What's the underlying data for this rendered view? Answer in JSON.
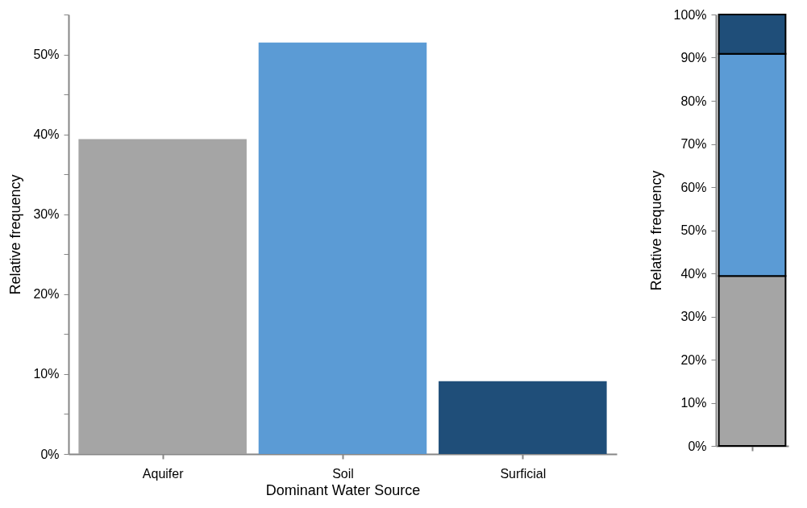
{
  "chart_data": [
    {
      "type": "bar",
      "xlabel": "Dominant Water Source",
      "ylabel": "Relative frequency",
      "categories": [
        "Aquifer",
        "Soil",
        "Surficial"
      ],
      "values": [
        39.4,
        51.5,
        9.1
      ],
      "colors": [
        "#a5a5a5",
        "#5b9bd5",
        "#1f4e79"
      ],
      "ylim": [
        0,
        55
      ],
      "yticks": [
        {
          "value": 0,
          "label": "0%"
        },
        {
          "value": 5,
          "label": null
        },
        {
          "value": 10,
          "label": "10%"
        },
        {
          "value": 15,
          "label": null
        },
        {
          "value": 20,
          "label": "20%"
        },
        {
          "value": 25,
          "label": null
        },
        {
          "value": 30,
          "label": "30%"
        },
        {
          "value": 35,
          "label": null
        },
        {
          "value": 40,
          "label": "40%"
        },
        {
          "value": 45,
          "label": null
        },
        {
          "value": 50,
          "label": "50%"
        },
        {
          "value": 55,
          "label": null
        }
      ],
      "grid": false,
      "legend": false
    },
    {
      "type": "bar",
      "stacked": true,
      "ylabel": "Relative frequency",
      "categories": [
        null
      ],
      "series": [
        {
          "color": "#a5a5a5",
          "values": [
            39.4
          ]
        },
        {
          "color": "#5b9bd5",
          "values": [
            51.5
          ]
        },
        {
          "color": "#1f4e79",
          "values": [
            9.1
          ]
        }
      ],
      "ylim": [
        0,
        100
      ],
      "yticks": [
        {
          "value": 0,
          "label": "0%"
        },
        {
          "value": 10,
          "label": "10%"
        },
        {
          "value": 20,
          "label": "20%"
        },
        {
          "value": 30,
          "label": "30%"
        },
        {
          "value": 40,
          "label": "40%"
        },
        {
          "value": 50,
          "label": "50%"
        },
        {
          "value": 60,
          "label": "60%"
        },
        {
          "value": 70,
          "label": "70%"
        },
        {
          "value": 80,
          "label": "80%"
        },
        {
          "value": 90,
          "label": "90%"
        },
        {
          "value": 100,
          "label": "100%"
        }
      ],
      "grid": false,
      "legend": false
    }
  ]
}
